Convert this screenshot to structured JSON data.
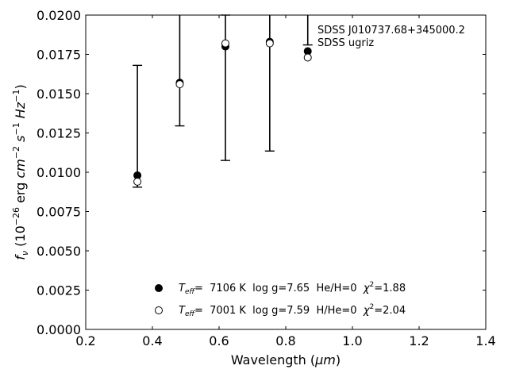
{
  "chart_data": {
    "type": "scatter",
    "xlabel_prefix": "Wavelength (",
    "xlabel_unit": "μm",
    "xlabel_suffix": ")",
    "xlim": [
      0.2,
      1.4
    ],
    "ylim": [
      0.0,
      0.02
    ],
    "xticks": [
      "0.2",
      "0.4",
      "0.6",
      "0.8",
      "1.0",
      "1.2",
      "1.4"
    ],
    "yticks": [
      "0.0000",
      "0.0025",
      "0.0050",
      "0.0075",
      "0.0100",
      "0.0125",
      "0.0150",
      "0.0175",
      "0.0200"
    ],
    "annotation": [
      "SDSS J010737.68+345000.2",
      "SDSS ugriz"
    ],
    "observed": {
      "x": [
        0.355,
        0.482,
        0.619,
        0.752,
        0.866
      ],
      "y_low": [
        0.00905,
        0.01295,
        0.01075,
        0.01135,
        0.0181
      ],
      "y_high": [
        0.0168,
        0.0205,
        0.02,
        0.0205,
        0.0205
      ]
    },
    "series": [
      {
        "name": "Teff= 7106 K log g=7.65 He/H=0 χ2=1.88",
        "marker": "filled",
        "x": [
          0.355,
          0.482,
          0.619,
          0.752,
          0.866
        ],
        "y": [
          0.0098,
          0.0157,
          0.018,
          0.0183,
          0.0177
        ]
      },
      {
        "name": "Teff= 7001 K log g=7.59 H/He=0 χ2=2.04",
        "marker": "open",
        "x": [
          0.355,
          0.482,
          0.619,
          0.752,
          0.866
        ],
        "y": [
          0.0094,
          0.0156,
          0.0182,
          0.0182,
          0.0173
        ]
      }
    ],
    "legend": [
      {
        "t": "T",
        "sub": "eff",
        "a": "=  7106 K  log g=7.65  He/H=0  ",
        "chi": "χ",
        "sup": "2",
        "b": "=1.88"
      },
      {
        "t": "T",
        "sub": "eff",
        "a": "=  7001 K  log g=7.59  H/He=0  ",
        "chi": "χ",
        "sup": "2",
        "b": "=2.04"
      }
    ],
    "grid": false,
    "legend_position": "lower-center"
  }
}
